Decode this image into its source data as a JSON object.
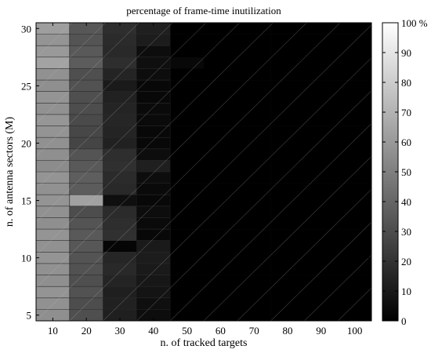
{
  "chart_data": {
    "type": "heatmap",
    "title": "percentage of frame-time inutilization",
    "xlabel": "n. of tracked targets",
    "ylabel": "n. of antenna sectors (M)",
    "x": [
      10,
      20,
      30,
      40,
      50,
      60,
      70,
      80,
      90,
      100
    ],
    "y": [
      5,
      6,
      7,
      8,
      9,
      10,
      11,
      12,
      13,
      14,
      15,
      16,
      17,
      18,
      19,
      20,
      21,
      22,
      23,
      24,
      25,
      26,
      27,
      28,
      29,
      30
    ],
    "x_ticks": [
      "10",
      "20",
      "30",
      "40",
      "50",
      "60",
      "70",
      "80",
      "90",
      "100"
    ],
    "y_ticks": [
      "5",
      "10",
      "15",
      "20",
      "25",
      "30"
    ],
    "colorbar": {
      "ticks": [
        "0",
        "10",
        "20",
        "30",
        "40",
        "50",
        "60",
        "70",
        "80",
        "90",
        "100 %"
      ],
      "range": [
        0,
        100
      ],
      "colormap": "gray"
    },
    "values_by_row_top_to_bottom": {
      "M30": [
        62,
        34,
        18,
        12,
        0,
        0,
        0,
        0,
        0,
        0
      ],
      "M29": [
        58,
        33,
        17,
        11,
        0,
        0,
        0,
        0,
        0,
        0
      ],
      "M28": [
        60,
        35,
        16,
        5,
        0,
        0,
        0,
        0,
        0,
        0
      ],
      "M27": [
        64,
        36,
        18,
        6,
        3,
        0,
        0,
        0,
        0,
        0
      ],
      "M26": [
        57,
        31,
        14,
        5,
        0,
        0,
        0,
        0,
        0,
        0
      ],
      "M25": [
        56,
        32,
        10,
        3,
        0,
        0,
        0,
        0,
        0,
        0
      ],
      "M24": [
        58,
        31,
        13,
        3,
        0,
        0,
        0,
        0,
        0,
        0
      ],
      "M23": [
        57,
        30,
        14,
        4,
        0,
        0,
        0,
        0,
        0,
        0
      ],
      "M22": [
        59,
        29,
        15,
        4,
        0,
        0,
        0,
        0,
        0,
        0
      ],
      "M21": [
        58,
        28,
        14,
        3,
        0,
        0,
        0,
        0,
        0,
        0
      ],
      "M20": [
        57,
        27,
        13,
        3,
        0,
        0,
        0,
        0,
        0,
        0
      ],
      "M19": [
        56,
        33,
        18,
        5,
        0,
        0,
        0,
        0,
        0,
        0
      ],
      "M18": [
        55,
        35,
        19,
        12,
        0,
        0,
        0,
        0,
        0,
        0
      ],
      "M17": [
        58,
        37,
        17,
        5,
        0,
        0,
        0,
        0,
        0,
        0
      ],
      "M16": [
        57,
        36,
        16,
        4,
        0,
        0,
        0,
        0,
        0,
        0
      ],
      "M15": [
        58,
        63,
        6,
        3,
        0,
        0,
        0,
        0,
        0,
        0
      ],
      "M14": [
        57,
        30,
        17,
        5,
        0,
        0,
        0,
        0,
        0,
        0
      ],
      "M13": [
        56,
        33,
        18,
        4,
        0,
        0,
        0,
        0,
        0,
        0
      ],
      "M12": [
        58,
        35,
        19,
        3,
        0,
        0,
        0,
        0,
        0,
        0
      ],
      "M11": [
        57,
        34,
        2,
        10,
        0,
        0,
        0,
        0,
        0,
        0
      ],
      "M10": [
        58,
        33,
        15,
        11,
        0,
        0,
        0,
        0,
        0,
        0
      ],
      "M9": [
        57,
        32,
        16,
        10,
        0,
        0,
        0,
        0,
        0,
        0
      ],
      "M8": [
        56,
        31,
        14,
        9,
        0,
        0,
        0,
        0,
        0,
        0
      ],
      "M7": [
        58,
        32,
        12,
        8,
        0,
        0,
        0,
        0,
        0,
        0
      ],
      "M6": [
        57,
        30,
        13,
        6,
        0,
        0,
        0,
        0,
        0,
        0
      ],
      "M5": [
        56,
        31,
        12,
        5,
        0,
        0,
        0,
        0,
        0,
        0
      ]
    }
  }
}
